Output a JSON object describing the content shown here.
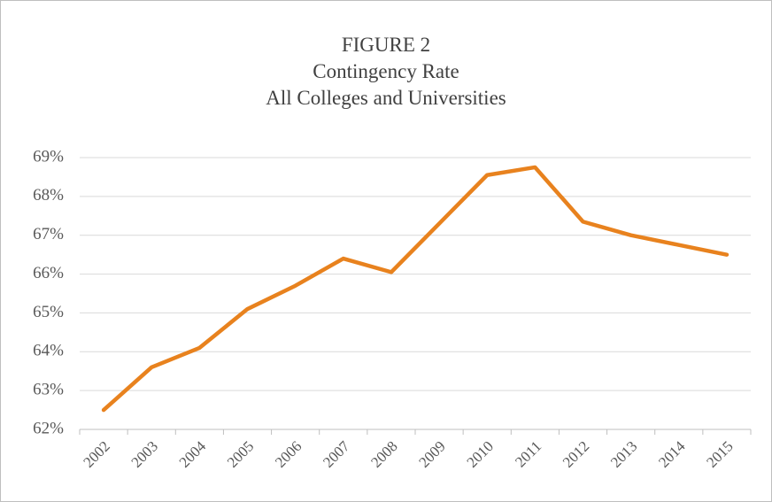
{
  "chart_data": {
    "type": "line",
    "title": [
      "FIGURE 2",
      "Contingency Rate",
      "All Colleges and Universities"
    ],
    "categories": [
      "2002",
      "2003",
      "2004",
      "2005",
      "2006",
      "2007",
      "2008",
      "2009",
      "2010",
      "2011",
      "2012",
      "2013",
      "2014",
      "2015"
    ],
    "series": [
      {
        "name": "Contingency Rate",
        "color": "#e8821e",
        "values": [
          62.5,
          63.6,
          64.1,
          65.1,
          65.7,
          66.4,
          66.05,
          67.3,
          68.55,
          68.75,
          67.35,
          67.0,
          66.75,
          66.5
        ]
      }
    ],
    "ylim": [
      62,
      69
    ],
    "yticks": [
      {
        "value": 62,
        "label": "62%"
      },
      {
        "value": 63,
        "label": "63%"
      },
      {
        "value": 64,
        "label": "64%"
      },
      {
        "value": 65,
        "label": "65%"
      },
      {
        "value": 66,
        "label": "66%"
      },
      {
        "value": 67,
        "label": "67%"
      },
      {
        "value": 68,
        "label": "68%"
      },
      {
        "value": 69,
        "label": "69%"
      }
    ],
    "grid": true
  }
}
